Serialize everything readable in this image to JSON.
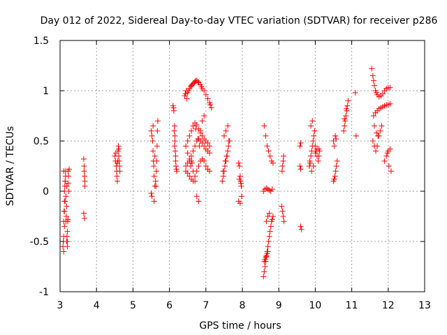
{
  "chart_data": {
    "type": "scatter",
    "title": "Day 012 of 2022, Sidereal Day-to-day VTEC variation (SDTVAR) for receiver p286",
    "xlabel": "GPS time / hours",
    "ylabel": "SDTVAR / TECUs",
    "xlim": [
      3,
      13
    ],
    "ylim": [
      -1,
      1.5
    ],
    "xticks": [
      3,
      4,
      5,
      6,
      7,
      8,
      9,
      10,
      11,
      12,
      13
    ],
    "xtick_labels": [
      "3",
      "4",
      "5",
      "6",
      "7",
      "8",
      "9",
      "10",
      "11",
      "12",
      "13"
    ],
    "yticks": [
      -1,
      -0.5,
      0,
      0.5,
      1,
      1.5
    ],
    "ytick_labels": [
      "-1",
      "-0.5",
      "0",
      "0.5",
      "1",
      "1.5"
    ],
    "grid": true,
    "marker": "+",
    "color": "#ff0000",
    "series": [
      {
        "name": "SDTVAR",
        "x": [
          3.08,
          3.09,
          3.1,
          3.1,
          3.11,
          3.12,
          3.12,
          3.13,
          3.14,
          3.15,
          3.15,
          3.16,
          3.17,
          3.18,
          3.19,
          3.2,
          3.21,
          3.22,
          3.23,
          3.25,
          3.1,
          3.12,
          3.14,
          3.16,
          3.18,
          3.2,
          3.22,
          3.24,
          3.1,
          3.14,
          3.18,
          3.22,
          3.2,
          3.12,
          3.65,
          3.66,
          3.67,
          3.68,
          3.65,
          3.67,
          3.66,
          3.68,
          4.5,
          4.52,
          4.54,
          4.55,
          4.56,
          4.57,
          4.58,
          4.59,
          4.6,
          4.61,
          4.62,
          4.63,
          4.64,
          4.53,
          4.57,
          4.61,
          5.5,
          5.52,
          5.54,
          5.55,
          5.56,
          5.57,
          5.58,
          5.6,
          5.62,
          5.64,
          5.65,
          5.66,
          5.67,
          5.68,
          5.52,
          5.58,
          5.63,
          5.55,
          5.6,
          5.5,
          6.1,
          6.12,
          6.14,
          6.15,
          6.16,
          6.17,
          6.18,
          6.2,
          6.11,
          6.15,
          6.13,
          6.17,
          6.19,
          6.14,
          6.42,
          6.44,
          6.46,
          6.48,
          6.5,
          6.52,
          6.55,
          6.58,
          6.6,
          6.62,
          6.65,
          6.68,
          6.7,
          6.72,
          6.75,
          6.78,
          6.8,
          6.85,
          6.88,
          6.9,
          6.95,
          7.0,
          7.05,
          7.1,
          7.12,
          7.15,
          6.45,
          6.5,
          6.55,
          6.6,
          6.65,
          6.7,
          6.75,
          6.8,
          6.85,
          6.9,
          6.95,
          7.0,
          7.05,
          7.1,
          6.45,
          6.5,
          6.55,
          6.6,
          6.65,
          6.7,
          6.75,
          6.8,
          6.85,
          6.9,
          6.95,
          7.0,
          7.05,
          7.1,
          6.45,
          6.5,
          6.55,
          6.6,
          6.65,
          6.7,
          6.75,
          6.8,
          6.85,
          6.9,
          6.95,
          7.0,
          7.05,
          7.1,
          6.6,
          6.65,
          6.7,
          6.75,
          6.8,
          6.85,
          6.9,
          6.95,
          6.72,
          6.78,
          6.82,
          6.5,
          6.55,
          6.58,
          6.62,
          7.45,
          7.48,
          7.5,
          7.52,
          7.55,
          7.58,
          7.6,
          7.62,
          7.65,
          7.5,
          7.55,
          7.6,
          7.47,
          7.53,
          7.57,
          7.63,
          7.9,
          7.92,
          7.94,
          7.96,
          7.98,
          7.9,
          7.94,
          7.97,
          7.92,
          7.95,
          8.58,
          8.6,
          8.62,
          8.64,
          8.66,
          8.68,
          8.7,
          8.72,
          8.74,
          8.76,
          8.78,
          8.8,
          8.82,
          8.84,
          8.58,
          8.62,
          8.66,
          8.7,
          8.74,
          8.78,
          8.82,
          8.6,
          8.64,
          8.68,
          8.72,
          8.76,
          8.8,
          8.84,
          8.66,
          8.7,
          8.74,
          8.6,
          8.62,
          8.64,
          8.66,
          8.68,
          8.7,
          9.08,
          9.1,
          9.12,
          9.14,
          9.1,
          9.12,
          9.09,
          9.13,
          9.58,
          9.6,
          9.62,
          9.6,
          9.58,
          9.6,
          9.85,
          9.88,
          9.9,
          9.92,
          9.94,
          9.96,
          9.98,
          10.0,
          10.02,
          10.05,
          10.08,
          10.1,
          10.12,
          9.9,
          9.95,
          10.0,
          10.05,
          9.88,
          9.92,
          10.1,
          9.84,
          9.86,
          10.5,
          10.52,
          10.54,
          10.56,
          10.58,
          10.6,
          10.5,
          10.55,
          10.52,
          10.57,
          10.78,
          10.8,
          10.82,
          10.84,
          10.86,
          10.88,
          10.9,
          10.8,
          10.85,
          11.1,
          11.12,
          11.55,
          11.58,
          11.6,
          11.62,
          11.65,
          11.68,
          11.7,
          11.75,
          11.8,
          11.85,
          11.9,
          11.95,
          12.0,
          12.05,
          11.6,
          11.65,
          11.7,
          11.75,
          11.8,
          11.85,
          11.9,
          11.95,
          12.0,
          12.05,
          11.58,
          11.62,
          11.66,
          11.7,
          11.74,
          11.78,
          11.82,
          11.9,
          11.95,
          12.0,
          12.05,
          12.08,
          12.02,
          11.98,
          11.62,
          11.68,
          11.72
        ],
        "y": [
          -0.55,
          -0.5,
          -0.45,
          -0.3,
          -0.2,
          -0.1,
          0.0,
          0.05,
          0.1,
          0.15,
          0.2,
          -0.3,
          -0.25,
          -0.5,
          -0.45,
          -0.4,
          -0.3,
          0.2,
          0.15,
          0.22,
          -0.6,
          -0.35,
          -0.1,
          -0.05,
          0.05,
          -0.5,
          -0.28,
          0.0,
          0.2,
          0.1,
          -0.15,
          0.08,
          -0.55,
          -0.2,
          0.32,
          0.25,
          0.15,
          0.05,
          -0.22,
          -0.27,
          0.2,
          0.1,
          0.35,
          0.3,
          0.25,
          0.2,
          0.15,
          0.1,
          0.3,
          0.4,
          0.45,
          0.35,
          0.3,
          0.25,
          0.2,
          0.38,
          0.28,
          0.42,
          0.6,
          0.55,
          0.5,
          0.4,
          0.3,
          0.25,
          0.15,
          0.05,
          0.1,
          0.2,
          0.3,
          0.45,
          0.6,
          0.7,
          -0.05,
          -0.1,
          0.05,
          0.65,
          0.35,
          -0.02,
          0.85,
          0.8,
          0.65,
          0.5,
          0.4,
          0.3,
          0.25,
          0.2,
          0.83,
          0.55,
          0.6,
          0.35,
          0.22,
          0.45,
          0.95,
          0.97,
          1.0,
          0.92,
          0.98,
          1.0,
          1.02,
          1.04,
          1.05,
          1.06,
          1.07,
          1.08,
          1.09,
          1.1,
          1.1,
          1.09,
          1.08,
          1.06,
          1.04,
          1.02,
          1.0,
          0.96,
          0.92,
          0.88,
          0.86,
          0.83,
          0.45,
          0.5,
          0.55,
          0.6,
          0.65,
          0.68,
          0.66,
          0.62,
          0.58,
          0.55,
          0.52,
          0.5,
          0.48,
          0.45,
          0.25,
          0.28,
          0.3,
          0.35,
          0.4,
          0.45,
          0.5,
          0.52,
          0.5,
          0.48,
          0.45,
          0.42,
          0.4,
          0.38,
          0.2,
          0.18,
          0.15,
          0.12,
          0.1,
          0.15,
          0.2,
          0.25,
          0.3,
          0.32,
          0.3,
          0.25,
          0.22,
          0.2,
          0.3,
          0.2,
          0.1,
          -0.05,
          -0.1,
          0.6,
          0.7,
          0.75,
          0.62,
          0.52,
          0.45,
          0.38,
          0.32,
          0.25,
          0.28,
          0.1,
          0.15,
          0.2,
          0.25,
          0.3,
          0.35,
          0.4,
          0.45,
          0.5,
          0.55,
          0.6,
          0.65,
          0.2,
          0.3,
          0.35,
          0.5,
          0.28,
          0.25,
          0.15,
          0.08,
          -0.05,
          -0.1,
          -0.12,
          0.05,
          0.12,
          0.1,
          -0.85,
          -0.8,
          -0.75,
          -0.7,
          -0.65,
          -0.6,
          -0.55,
          -0.5,
          -0.45,
          -0.4,
          -0.35,
          -0.3,
          -0.28,
          -0.25,
          0.0,
          0.02,
          0.03,
          0.02,
          0.01,
          0.0,
          0.02,
          0.65,
          0.55,
          0.45,
          0.4,
          0.35,
          0.3,
          0.28,
          -0.3,
          -0.25,
          -0.22,
          -0.7,
          -0.68,
          -0.66,
          -0.64,
          -0.62,
          -0.6,
          -0.15,
          -0.2,
          -0.25,
          -0.3,
          0.25,
          0.3,
          0.2,
          0.35,
          0.25,
          0.22,
          -0.38,
          -0.35,
          0.45,
          0.48,
          0.3,
          0.35,
          0.4,
          0.45,
          0.5,
          0.55,
          0.6,
          0.45,
          0.4,
          0.35,
          0.3,
          0.35,
          0.4,
          0.2,
          0.25,
          0.38,
          0.42,
          0.65,
          0.7,
          0.42,
          0.25,
          0.28,
          0.1,
          0.12,
          0.15,
          0.2,
          0.25,
          0.3,
          0.5,
          0.55,
          0.45,
          0.52,
          0.6,
          0.65,
          0.7,
          0.75,
          0.8,
          0.85,
          0.9,
          0.72,
          0.82,
          0.98,
          0.55,
          1.22,
          1.15,
          1.1,
          1.05,
          1.0,
          0.98,
          0.96,
          0.94,
          0.95,
          0.97,
          1.0,
          1.02,
          1.03,
          1.03,
          0.75,
          0.78,
          0.8,
          0.82,
          0.83,
          0.84,
          0.85,
          0.86,
          0.86,
          0.87,
          0.5,
          0.45,
          0.4,
          0.45,
          0.55,
          0.6,
          0.65,
          0.3,
          0.35,
          0.4,
          0.42,
          0.2,
          0.25,
          0.38,
          0.65,
          0.58,
          0.55
        ]
      }
    ]
  }
}
